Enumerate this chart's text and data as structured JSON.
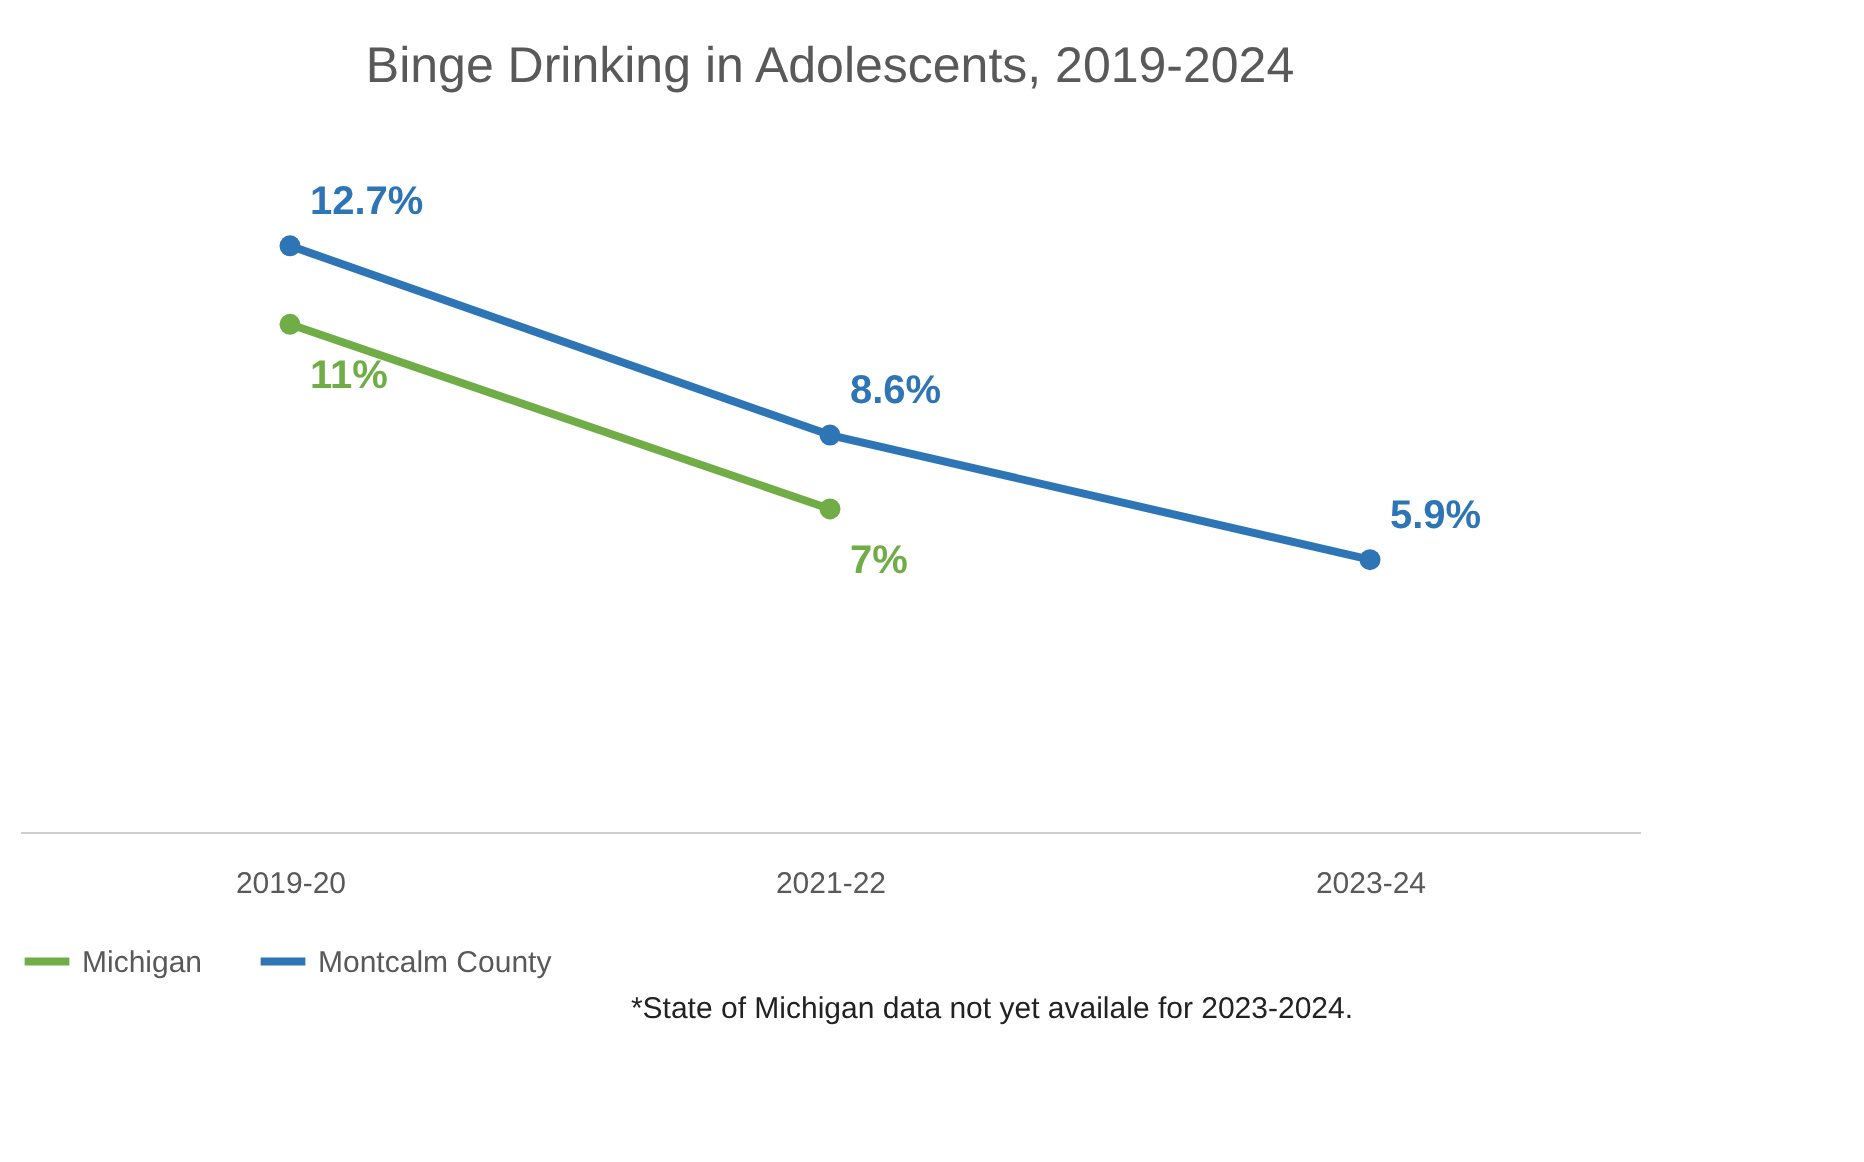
{
  "chart_data": {
    "type": "line",
    "title": "Binge Drinking in Adolescents, 2019-2024",
    "categories": [
      "2019-20",
      "2021-22",
      "2023-24"
    ],
    "series": [
      {
        "name": "Michigan",
        "color": "#70ad47",
        "values": [
          11,
          7,
          null
        ],
        "value_labels": [
          "11%",
          "7%",
          null
        ]
      },
      {
        "name": "Montcalm County",
        "color": "#2e75b6",
        "values": [
          12.7,
          8.6,
          5.9
        ],
        "value_labels": [
          "12.7%",
          "8.6%",
          "5.9%"
        ]
      }
    ],
    "marker": "circle",
    "legend": "bottom",
    "grid": false,
    "tick_labels": "x",
    "annotations": [
      "*State of Michigan data not yet availale for 2023-2024."
    ]
  }
}
